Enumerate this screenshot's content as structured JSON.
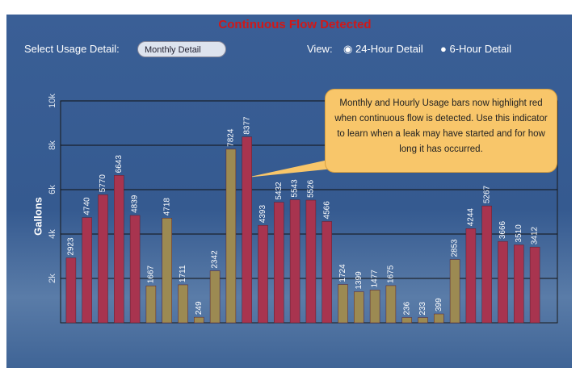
{
  "header": {
    "title": "Continuous Flow Detected"
  },
  "controls": {
    "select_label": "Select Usage Detail:",
    "select_value": "Monthly Detail",
    "view_label": "View:",
    "options": [
      "24-Hour Detail",
      "6-Hour Detail"
    ]
  },
  "callout": "Monthly and Hourly Usage bars now highlight red when continuous flow is detected.  Use this indicator to learn when a leak may have started and for how long it has occurred.",
  "chart_data": {
    "type": "bar",
    "y_label": "Gallons",
    "categories": [
      null,
      null,
      null,
      null,
      null,
      null,
      null,
      null,
      null,
      null,
      null,
      null,
      null,
      null,
      null,
      null,
      null,
      null,
      null,
      null,
      null,
      null,
      null,
      null,
      null,
      null,
      null,
      null,
      null,
      null
    ],
    "values": [
      2923,
      4740,
      5770,
      6643,
      4839,
      1667,
      4718,
      1711,
      249,
      2342,
      7824,
      8377,
      4393,
      5432,
      5543,
      5526,
      4566,
      1724,
      1399,
      1477,
      1675,
      236,
      233,
      399,
      2853,
      4244,
      5267,
      3666,
      3510,
      3412
    ],
    "colors": [
      "#a8344f",
      "#a8344f",
      "#a8344f",
      "#a8344f",
      "#a8344f",
      "#9c8a52",
      "#9c8a52",
      "#9c8a52",
      "#9c8a52",
      "#9c8a52",
      "#9c8a52",
      "#a8344f",
      "#a8344f",
      "#a8344f",
      "#a8344f",
      "#a8344f",
      "#a8344f",
      "#9c8a52",
      "#9c8a52",
      "#9c8a52",
      "#9c8a52",
      "#9c8a52",
      "#9c8a52",
      "#9c8a52",
      "#9c8a52",
      "#a8344f",
      "#a8344f",
      "#a8344f",
      "#a8344f",
      "#a8344f"
    ],
    "ylim": [
      0,
      10000
    ],
    "yticks": [
      {
        "value": 2000,
        "label": "2k"
      },
      {
        "value": 4000,
        "label": "4k"
      },
      {
        "value": 6000,
        "label": "6k"
      },
      {
        "value": 8000,
        "label": "8k"
      },
      {
        "value": 10000,
        "label": "10k"
      }
    ],
    "grid": true
  }
}
